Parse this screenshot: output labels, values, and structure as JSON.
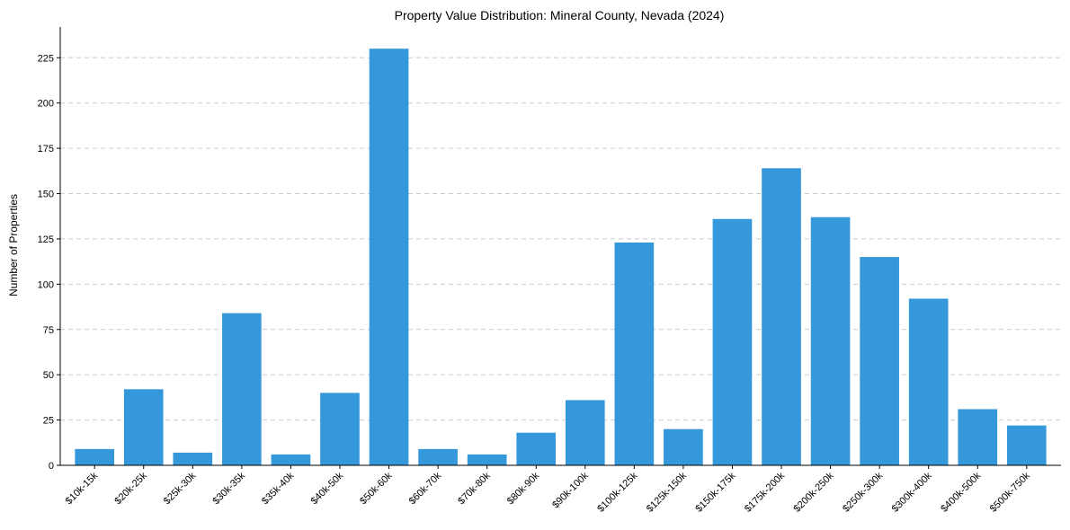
{
  "chart_data": {
    "type": "bar",
    "title": "Property Value Distribution: Mineral County, Nevada (2024)",
    "xlabel": "",
    "ylabel": "Number of Properties",
    "categories": [
      "$10k-15k",
      "$20k-25k",
      "$25k-30k",
      "$30k-35k",
      "$35k-40k",
      "$40k-50k",
      "$50k-60k",
      "$60k-70k",
      "$70k-80k",
      "$80k-90k",
      "$90k-100k",
      "$100k-125k",
      "$125k-150k",
      "$150k-175k",
      "$175k-200k",
      "$200k-250k",
      "$250k-300k",
      "$300k-400k",
      "$400k-500k",
      "$500k-750k"
    ],
    "values": [
      9,
      42,
      7,
      84,
      6,
      40,
      230,
      9,
      6,
      18,
      36,
      123,
      20,
      136,
      164,
      137,
      115,
      92,
      31,
      22
    ],
    "ylim": [
      0,
      242
    ],
    "yticks": [
      0,
      25,
      50,
      75,
      100,
      125,
      150,
      175,
      200,
      225
    ],
    "grid": "y",
    "bar_color": "#3498db"
  }
}
